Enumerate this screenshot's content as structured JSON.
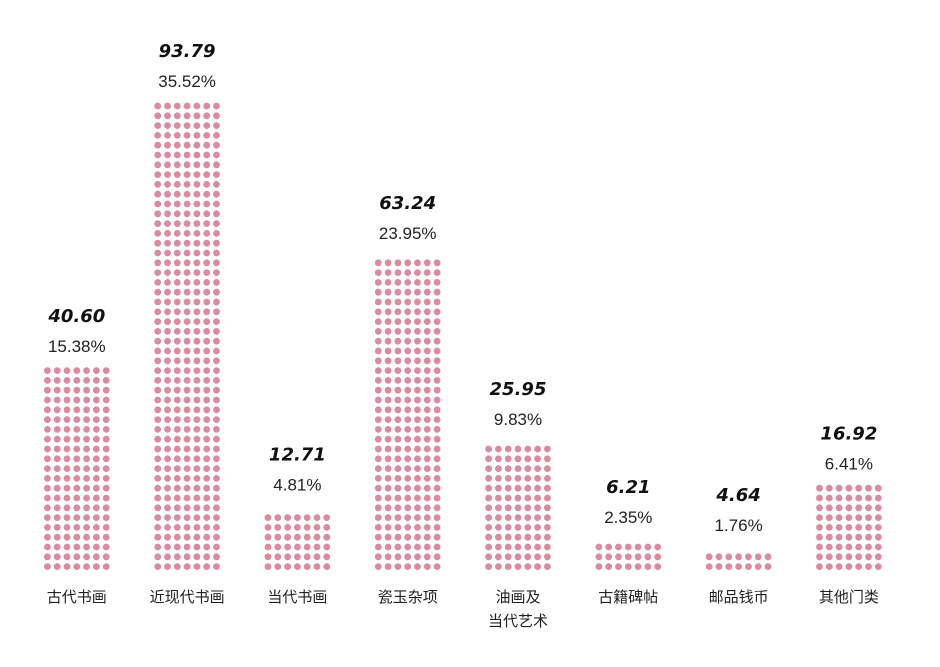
{
  "chart_data": {
    "type": "bar",
    "categories": [
      [
        "古代书画"
      ],
      [
        "近现代书画"
      ],
      [
        "当代书画"
      ],
      [
        "瓷玉杂项"
      ],
      [
        "油画及",
        "当代艺术"
      ],
      [
        "古籍碑帖"
      ],
      [
        "邮品钱币"
      ],
      [
        "其他门类"
      ]
    ],
    "values": [
      40.6,
      93.79,
      12.71,
      63.24,
      25.95,
      6.21,
      4.64,
      16.92
    ],
    "value_labels": [
      "40.60",
      "93.79",
      "12.71",
      "63.24",
      "25.95",
      "6.21",
      "4.64",
      "16.92"
    ],
    "percent_labels": [
      "15.38%",
      "35.52%",
      "4.81%",
      "23.95%",
      "9.83%",
      "2.35%",
      "1.76%",
      "6.41%"
    ],
    "title": "",
    "xlabel": "",
    "ylabel": "",
    "ylim": [
      0,
      100
    ],
    "bar_style": "dotted",
    "dot_color": "#d98b9f",
    "value_color": "#111111",
    "percent_color": "#222222",
    "grid": false,
    "legend": "none"
  }
}
